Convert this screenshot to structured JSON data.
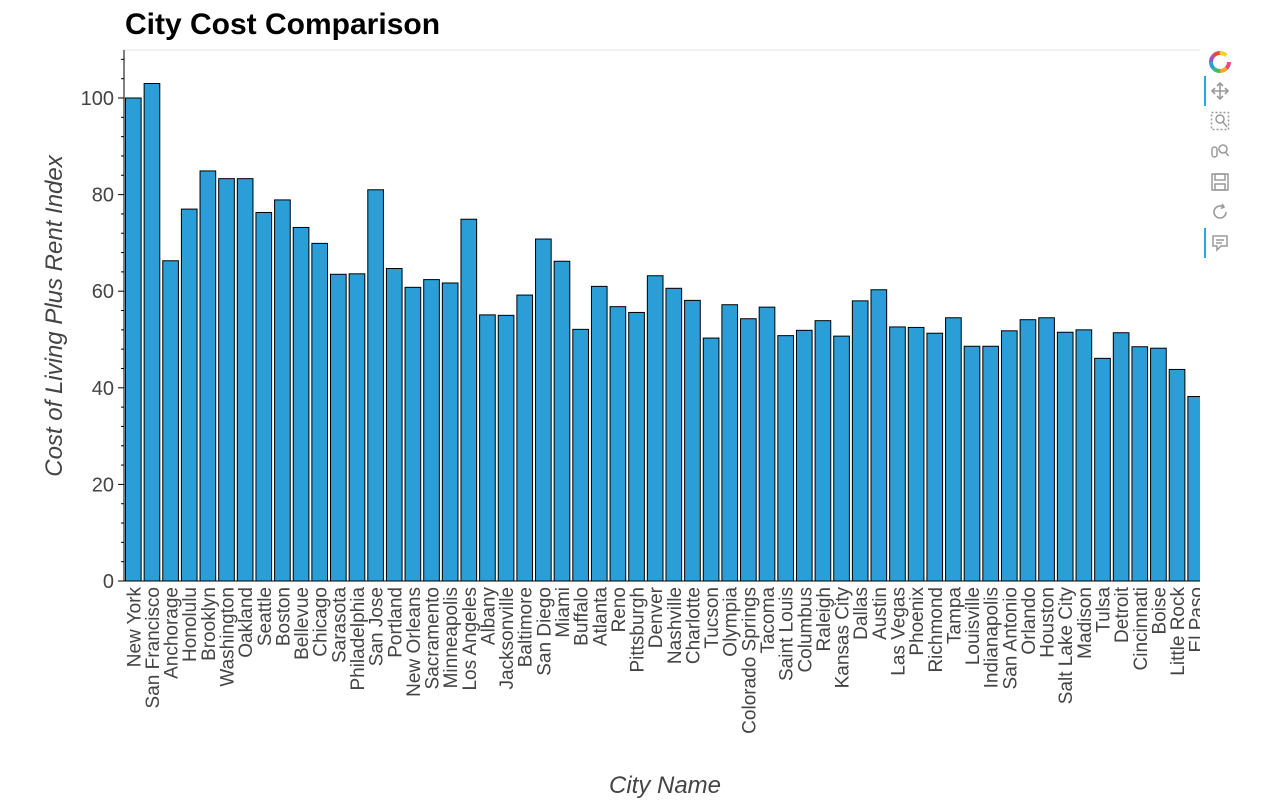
{
  "chart_data": {
    "type": "bar",
    "title": "City Cost Comparison",
    "xlabel": "City Name",
    "ylabel": "Cost of Living Plus Rent Index",
    "ylim": [
      0,
      109
    ],
    "yticks": [
      0,
      20,
      40,
      60,
      80,
      100
    ],
    "grid": false,
    "bar_color": "#2b9ed8",
    "bar_outline": "#000000",
    "categories": [
      "New York",
      "San Francisco",
      "Anchorage",
      "Honolulu",
      "Brooklyn",
      "Washington",
      "Oakland",
      "Seattle",
      "Boston",
      "Bellevue",
      "Chicago",
      "Sarasota",
      "Philadelphia",
      "San Jose",
      "Portland",
      "New Orleans",
      "Sacramento",
      "Minneapolis",
      "Los Angeles",
      "Albany",
      "Jacksonville",
      "Baltimore",
      "San Diego",
      "Miami",
      "Buffalo",
      "Atlanta",
      "Reno",
      "Pittsburgh",
      "Denver",
      "Nashville",
      "Charlotte",
      "Tucson",
      "Olympia",
      "Colorado Springs",
      "Tacoma",
      "Saint Louis",
      "Columbus",
      "Raleigh",
      "Kansas City",
      "Dallas",
      "Austin",
      "Las Vegas",
      "Phoenix",
      "Richmond",
      "Tampa",
      "Louisville",
      "Indianapolis",
      "San Antonio",
      "Orlando",
      "Houston",
      "Salt Lake City",
      "Madison",
      "Tulsa",
      "Detroit",
      "Cincinnati",
      "Boise",
      "Little Rock",
      "El Paso"
    ],
    "values": [
      100,
      103,
      66.3,
      77,
      84.9,
      83.3,
      83.3,
      76.3,
      78.9,
      73.2,
      69.9,
      63.5,
      63.6,
      81,
      64.7,
      60.8,
      62.4,
      61.7,
      74.9,
      55.1,
      55,
      59.2,
      70.8,
      66.2,
      52.1,
      61,
      56.8,
      55.6,
      63.2,
      60.6,
      58.1,
      50.3,
      57.2,
      54.3,
      56.7,
      50.8,
      51.9,
      53.9,
      50.7,
      58,
      60.3,
      52.6,
      52.5,
      51.3,
      54.5,
      48.6,
      48.6,
      51.8,
      54.1,
      54.5,
      51.5,
      52,
      46.1,
      51.4,
      48.5,
      48.2,
      43.8,
      38.2
    ]
  },
  "toolbar": {
    "tools": [
      "bokeh-logo-icon",
      "pan-icon",
      "box-zoom-icon",
      "wheel-zoom-icon",
      "save-icon",
      "reset-icon",
      "hover-icon"
    ],
    "accent": "#26aae1"
  }
}
